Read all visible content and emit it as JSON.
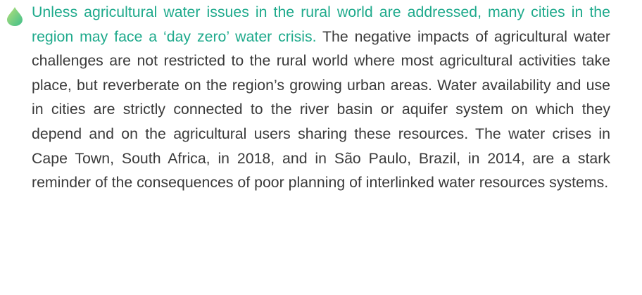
{
  "paragraph": {
    "highlight": "Unless agricultural water issues in the rural world are addressed, many cities in the region may face a ‘day zero’ water crisis.",
    "body": "The negative impacts of agricultural water challenges are not restricted to the rural world where most agricultural activities take place, but reverberate on the region’s growing urban areas. Water availability and use in cities are strictly connected to the river basin or aquifer system on which they depend and on the agricultural users sharing these resources. The water crises in Cape Town, South Africa, in 2018, and in São Paulo, Brazil, in 2014, are a stark reminder of the consequences of poor planning of interlinked water resources systems."
  }
}
